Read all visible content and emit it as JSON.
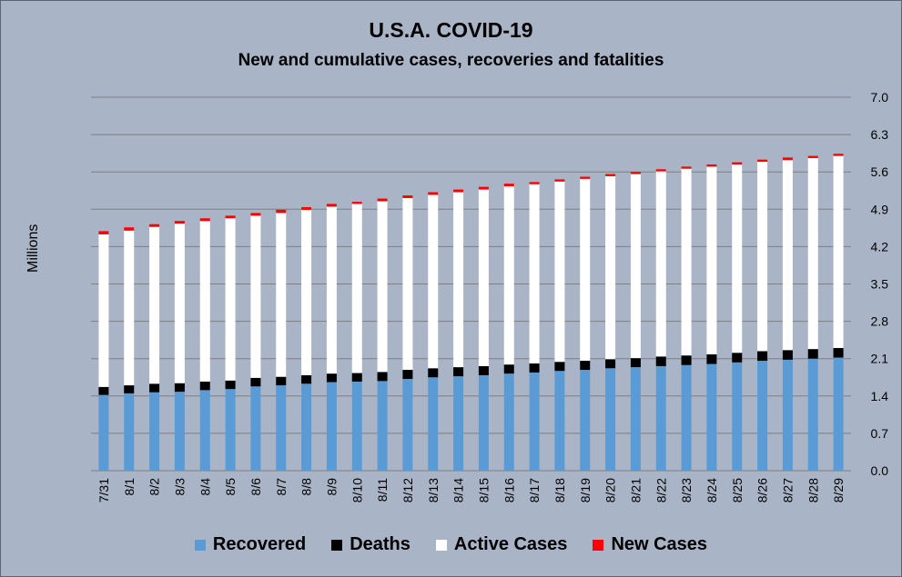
{
  "chart_data": {
    "type": "bar",
    "stacked": true,
    "title": "U.S.A. COVID-19",
    "subtitle": "New and cumulative cases, recoveries and fatalities",
    "ylabel": "Millions",
    "xlabel": "",
    "ylim": [
      0,
      7.0
    ],
    "y_ticks": [
      "0.0",
      "0.7",
      "1.4",
      "2.1",
      "2.8",
      "3.5",
      "4.2",
      "4.9",
      "5.6",
      "6.3",
      "7.0"
    ],
    "y_axis_side": "right",
    "grid": true,
    "legend_position": "bottom",
    "categories": [
      "7/31",
      "8/1",
      "8/2",
      "8/3",
      "8/4",
      "8/5",
      "8/6",
      "8/7",
      "8/8",
      "8/9",
      "8/10",
      "8/11",
      "8/12",
      "8/13",
      "8/14",
      "8/15",
      "8/16",
      "8/17",
      "8/18",
      "8/19",
      "8/20",
      "8/21",
      "8/22",
      "8/23",
      "8/24",
      "8/25",
      "8/26",
      "8/27",
      "8/28",
      "8/29"
    ],
    "series": [
      {
        "name": "Recovered",
        "color": "#5b9bd5",
        "values": [
          1.42,
          1.45,
          1.47,
          1.48,
          1.51,
          1.53,
          1.58,
          1.6,
          1.63,
          1.66,
          1.67,
          1.68,
          1.72,
          1.75,
          1.77,
          1.79,
          1.82,
          1.84,
          1.87,
          1.89,
          1.92,
          1.94,
          1.96,
          1.98,
          2.0,
          2.03,
          2.06,
          2.08,
          2.1,
          2.12
        ]
      },
      {
        "name": "Deaths",
        "color": "#000000",
        "values": [
          0.15,
          0.15,
          0.16,
          0.16,
          0.16,
          0.16,
          0.16,
          0.16,
          0.16,
          0.16,
          0.16,
          0.17,
          0.17,
          0.17,
          0.17,
          0.17,
          0.17,
          0.17,
          0.17,
          0.17,
          0.17,
          0.17,
          0.18,
          0.18,
          0.18,
          0.18,
          0.18,
          0.18,
          0.18,
          0.18
        ]
      },
      {
        "name": "Active Cases",
        "color": "#ffffff",
        "values": [
          2.86,
          2.9,
          2.94,
          2.99,
          3.01,
          3.04,
          3.04,
          3.07,
          3.1,
          3.13,
          3.17,
          3.2,
          3.22,
          3.25,
          3.28,
          3.31,
          3.34,
          3.36,
          3.38,
          3.41,
          3.43,
          3.45,
          3.47,
          3.5,
          3.52,
          3.53,
          3.55,
          3.56,
          3.58,
          3.6
        ]
      },
      {
        "name": "New Cases",
        "color": "#ff0000",
        "values": [
          0.06,
          0.06,
          0.05,
          0.05,
          0.05,
          0.05,
          0.05,
          0.06,
          0.05,
          0.05,
          0.04,
          0.05,
          0.05,
          0.05,
          0.05,
          0.05,
          0.05,
          0.04,
          0.04,
          0.04,
          0.04,
          0.04,
          0.04,
          0.04,
          0.04,
          0.04,
          0.04,
          0.05,
          0.04,
          0.04
        ]
      }
    ]
  }
}
